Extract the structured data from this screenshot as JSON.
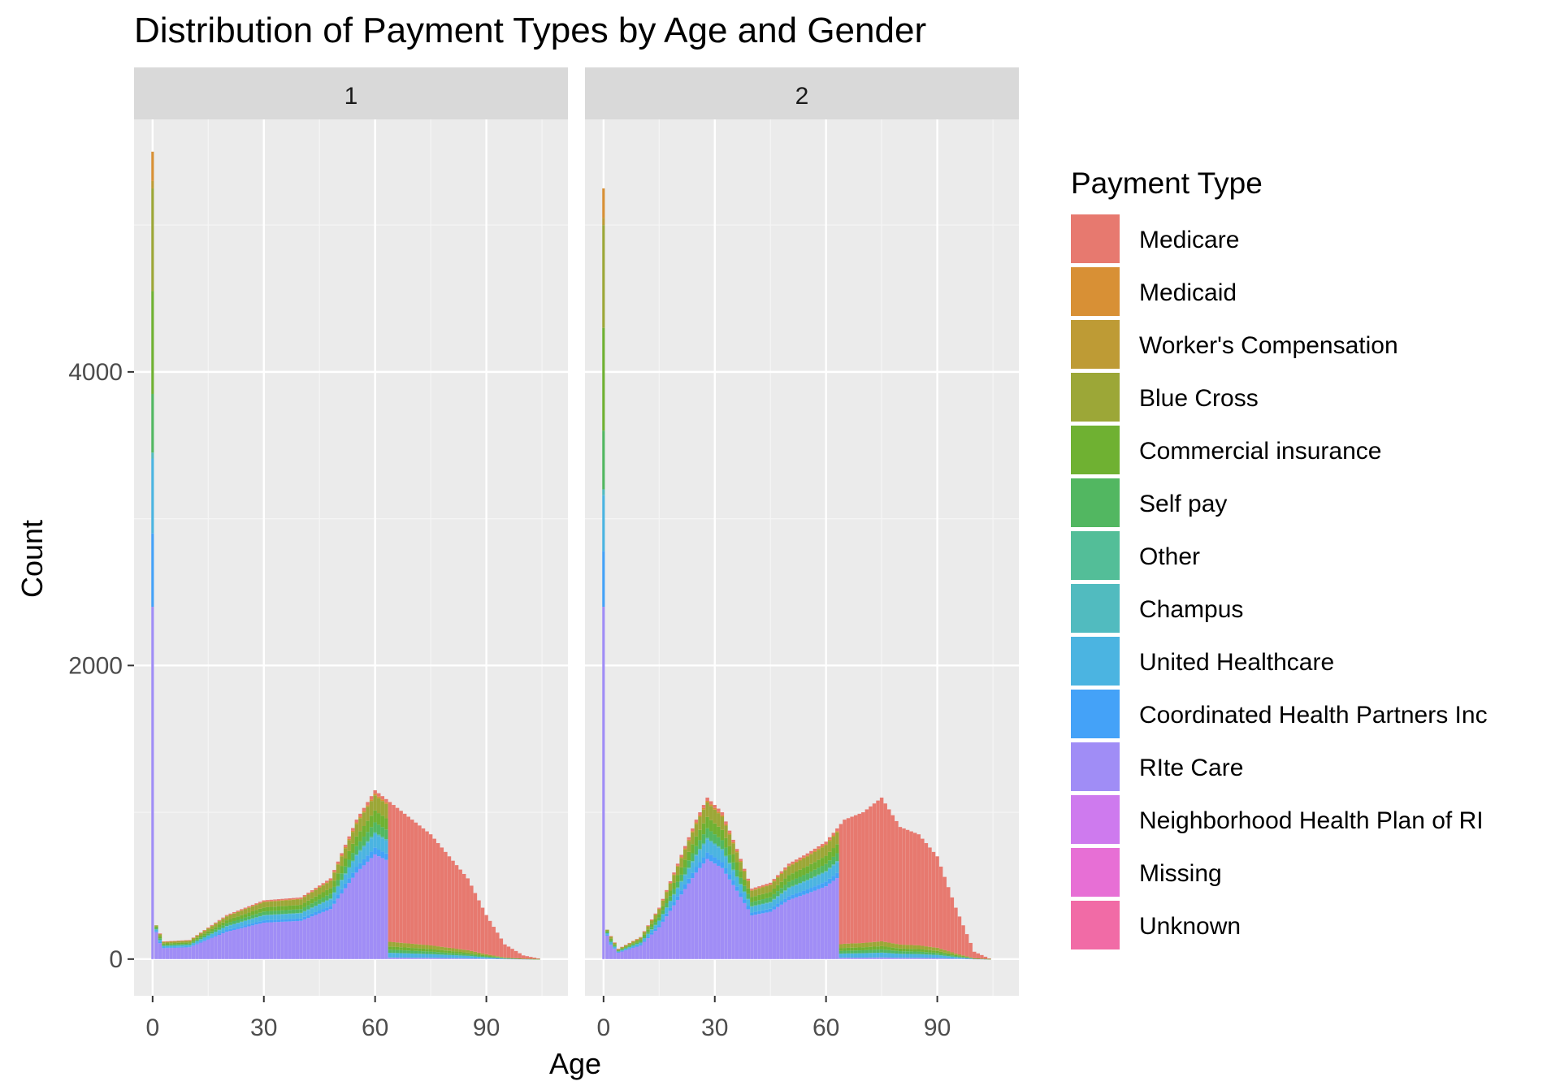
{
  "chart_data": {
    "type": "bar",
    "stacked": true,
    "faceted_by": "gender",
    "title": "Distribution of Payment Types by Age and Gender",
    "xlabel": "Age",
    "ylabel": "Count",
    "x_ticks": [
      0,
      30,
      60,
      90
    ],
    "y_ticks": [
      0,
      2000,
      4000
    ],
    "xlim": [
      -5,
      112
    ],
    "ylim": [
      -250,
      5720
    ],
    "grid": true,
    "legend_position": "right",
    "legend_title": "Payment Type",
    "categories": [
      "Medicare",
      "Medicaid",
      "Worker's Compensation",
      "Blue Cross",
      "Commercial insurance",
      "Self pay",
      "Other",
      "Champus",
      "United Healthcare",
      "Coordinated Health Partners Inc",
      "RIte Care",
      "Neighborhood Health Plan of RI",
      "Missing",
      "Unknown"
    ],
    "colors": [
      "#E7796F",
      "#D89035",
      "#BE9B35",
      "#9CA737",
      "#6FB132",
      "#52B761",
      "#53BE98",
      "#51BBBF",
      "#4BB4E1",
      "#44A2F8",
      "#A08DF6",
      "#CE7AEE",
      "#E76FD5",
      "#F16BA6"
    ],
    "facets": [
      {
        "label": "1",
        "age_points": [
          {
            "age": 0,
            "total": 5500,
            "segments": {
              "Medicare": 0,
              "Medicaid": 200,
              "Worker's Compensation": 50,
              "Blue Cross": 700,
              "Commercial insurance": 700,
              "Self pay": 400,
              "Other": 0,
              "Champus": 40,
              "United Healthcare": 510,
              "Coordinated Health Partners Inc": 500,
              "RIte Care": 2400,
              "Neighborhood Health Plan of RI": 0,
              "Missing": 0,
              "Unknown": 0
            }
          },
          {
            "age": 1,
            "total": 230
          },
          {
            "age": 3,
            "total": 120
          },
          {
            "age": 10,
            "total": 130
          },
          {
            "age": 20,
            "total": 300
          },
          {
            "age": 30,
            "total": 400
          },
          {
            "age": 40,
            "total": 420
          },
          {
            "age": 48,
            "total": 550
          },
          {
            "age": 55,
            "total": 950
          },
          {
            "age": 60,
            "total": 1150
          },
          {
            "age": 65,
            "total": 1050
          },
          {
            "age": 70,
            "total": 950
          },
          {
            "age": 75,
            "total": 850
          },
          {
            "age": 80,
            "total": 700
          },
          {
            "age": 85,
            "total": 550
          },
          {
            "age": 90,
            "total": 300
          },
          {
            "age": 95,
            "total": 100
          },
          {
            "age": 100,
            "total": 25
          },
          {
            "age": 104,
            "total": 5
          }
        ]
      },
      {
        "label": "2",
        "age_points": [
          {
            "age": 0,
            "total": 5250,
            "segments": {
              "Medicare": 0,
              "Medicaid": 200,
              "Worker's Compensation": 50,
              "Blue Cross": 700,
              "Commercial insurance": 700,
              "Self pay": 400,
              "Other": 0,
              "Champus": 40,
              "United Healthcare": 380,
              "Coordinated Health Partners Inc": 380,
              "RIte Care": 2400,
              "Neighborhood Health Plan of RI": 0,
              "Missing": 0,
              "Unknown": 0
            }
          },
          {
            "age": 1,
            "total": 200
          },
          {
            "age": 4,
            "total": 70
          },
          {
            "age": 10,
            "total": 150
          },
          {
            "age": 15,
            "total": 350
          },
          {
            "age": 20,
            "total": 650
          },
          {
            "age": 25,
            "total": 950
          },
          {
            "age": 28,
            "total": 1100
          },
          {
            "age": 32,
            "total": 1000
          },
          {
            "age": 36,
            "total": 750
          },
          {
            "age": 40,
            "total": 480
          },
          {
            "age": 45,
            "total": 520
          },
          {
            "age": 50,
            "total": 650
          },
          {
            "age": 55,
            "total": 720
          },
          {
            "age": 60,
            "total": 800
          },
          {
            "age": 65,
            "total": 950
          },
          {
            "age": 70,
            "total": 1000
          },
          {
            "age": 75,
            "total": 1100
          },
          {
            "age": 80,
            "total": 900
          },
          {
            "age": 85,
            "total": 850
          },
          {
            "age": 90,
            "total": 700
          },
          {
            "age": 95,
            "total": 350
          },
          {
            "age": 100,
            "total": 50
          },
          {
            "age": 104,
            "total": 5
          }
        ]
      }
    ]
  }
}
